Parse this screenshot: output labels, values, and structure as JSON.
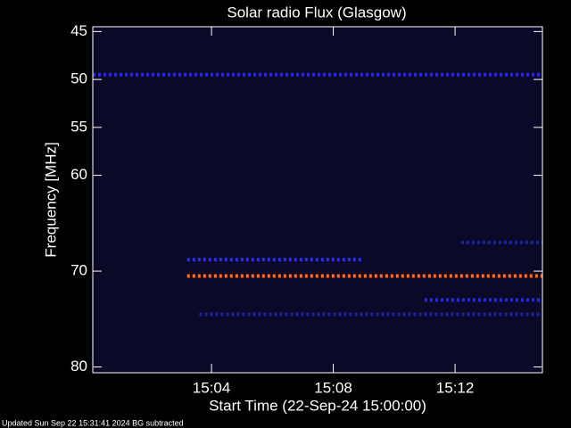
{
  "chart_data": {
    "type": "spectrogram",
    "title": "Solar radio Flux (Glasgow)",
    "x_label": "Start Time (22-Sep-24 15:00:00)",
    "y_label": "Frequency [MHz]",
    "xlim": [
      0.1,
      14.87
    ],
    "xticks": [
      {
        "value": 4,
        "label": "15:04"
      },
      {
        "value": 8,
        "label": "15:08"
      },
      {
        "value": 12,
        "label": "15:12"
      }
    ],
    "ylim": [
      44.5,
      80.6
    ],
    "yticks": [
      45,
      50,
      55,
      60,
      70,
      80
    ],
    "background": "#0a0a28",
    "bands": [
      {
        "freq": 49.5,
        "x": [
          0.1,
          14.87
        ],
        "color": "#2a2ad0"
      },
      {
        "freq": 68.8,
        "x": [
          3.2,
          9.0
        ],
        "color": "#3030d8"
      },
      {
        "freq": 70.5,
        "x": [
          3.2,
          14.87
        ],
        "color": "#ff7020"
      },
      {
        "freq": 73.0,
        "x": [
          11.0,
          14.87
        ],
        "color": "#2a2ac8"
      },
      {
        "freq": 74.5,
        "x": [
          3.6,
          14.8
        ],
        "color": "#1e1ea0"
      },
      {
        "freq": 67.0,
        "x": [
          12.2,
          14.87
        ],
        "color": "#1e1ea0"
      }
    ],
    "footer": "Updated Sun Sep 22 15:31:41 2024   BG subtracted"
  }
}
